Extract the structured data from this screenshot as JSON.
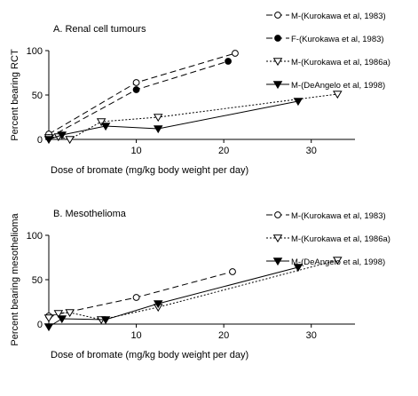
{
  "chart_data": [
    {
      "type": "line",
      "title": "A. Renal cell tumours",
      "xlabel": "Dose of bromate (mg/kg body weight per day)",
      "ylabel": "Percent bearing RCT",
      "xlim": [
        0,
        35
      ],
      "ylim": [
        0,
        100
      ],
      "xticks": [
        10,
        20,
        30
      ],
      "yticks": [
        0,
        50,
        100
      ],
      "legend_position": "top-right",
      "series": [
        {
          "name": "M-(Kurokawa et al, 1983)",
          "line": "dashed",
          "marker": "circle-open",
          "x": [
            0,
            10,
            21.3
          ],
          "y": [
            6,
            64,
            97
          ]
        },
        {
          "name": "F-(Kurokawa et al, 1983)",
          "line": "dashed",
          "marker": "circle-filled",
          "x": [
            0,
            10,
            20.5
          ],
          "y": [
            2,
            56,
            88
          ]
        },
        {
          "name": "M-(Kurokawa et al, 1986a)",
          "line": "dotted",
          "marker": "triangle-open",
          "x": [
            0,
            1.1,
            2.4,
            6,
            12.5,
            33
          ],
          "y": [
            2,
            3,
            0,
            20,
            25,
            51
          ]
        },
        {
          "name": "M-(DeAngelo et al, 1998)",
          "line": "solid",
          "marker": "triangle-filled",
          "x": [
            0,
            1.5,
            6.5,
            12.5,
            28.5
          ],
          "y": [
            0,
            5,
            15,
            12,
            43
          ]
        }
      ]
    },
    {
      "type": "line",
      "title": "B. Mesothelioma",
      "xlabel": "Dose of bromate (mg/kg body weight per day)",
      "ylabel": "Percent bearing mesothelioma",
      "xlim": [
        0,
        35
      ],
      "ylim": [
        0,
        100
      ],
      "xticks": [
        10,
        20,
        30
      ],
      "yticks": [
        0,
        50,
        100
      ],
      "legend_position": "top-right",
      "series": [
        {
          "name": "M-(Kurokawa et al, 1983)",
          "line": "dashed",
          "marker": "circle-open",
          "x": [
            0,
            10,
            21
          ],
          "y": [
            9,
            30,
            59
          ]
        },
        {
          "name": "M-(Kurokawa et al, 1986a)",
          "line": "dotted",
          "marker": "triangle-open",
          "x": [
            0,
            1.1,
            2.4,
            6,
            12.5,
            33
          ],
          "y": [
            7,
            12,
            13,
            5,
            19,
            72
          ]
        },
        {
          "name": "M-(DeAngelo et al, 1998)",
          "line": "solid",
          "marker": "triangle-filled",
          "x": [
            0,
            1.5,
            6.5,
            12.5,
            28.5
          ],
          "y": [
            -3,
            6,
            5,
            23,
            64
          ]
        }
      ]
    }
  ]
}
